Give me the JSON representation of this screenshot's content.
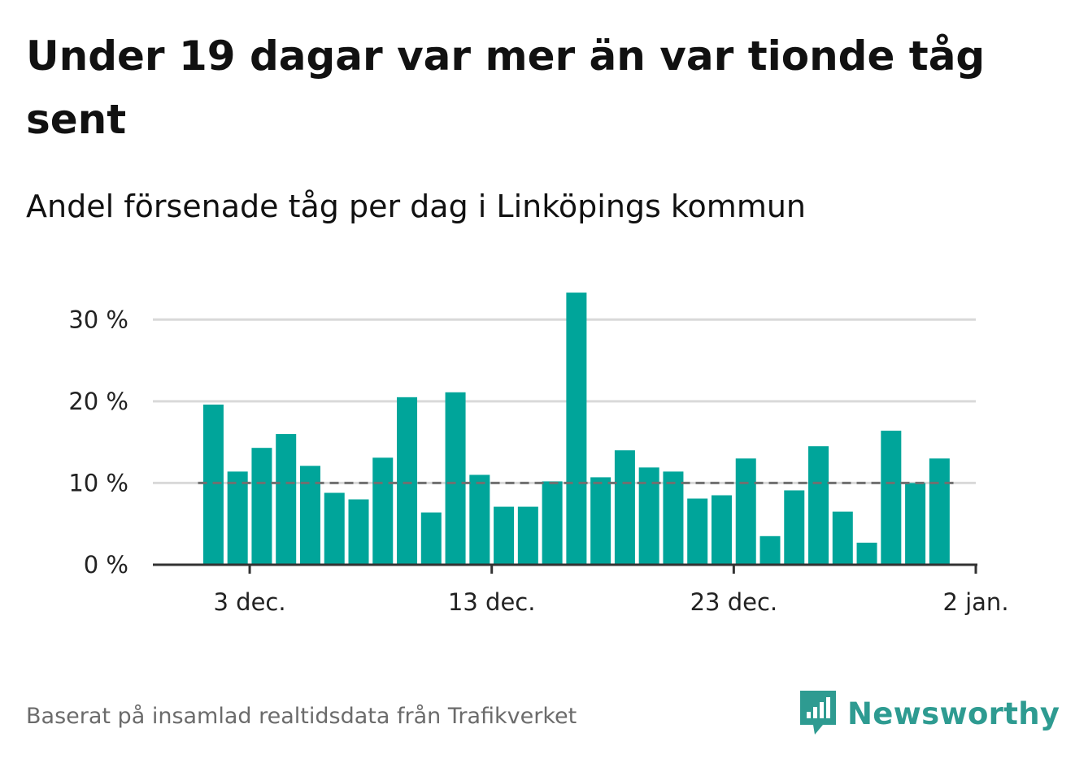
{
  "title": "Under 19 dagar var mer än var tionde tåg sent",
  "subtitle": "Andel försenade tåg per dag i Linköpings kommun",
  "footer": "Baserat på insamlad realtidsdata från Trafikverket",
  "brand": {
    "name": "Newsworthy",
    "icon": "newsworthy-logo-icon",
    "color": "#2e9b91"
  },
  "colors": {
    "bar": "#00a59a",
    "reference_line": "#707070",
    "grid": "#d9d9d9",
    "axis": "#333333"
  },
  "chart_data": {
    "type": "bar",
    "x_type": "date",
    "x": [
      "2023-12-01",
      "2023-12-02",
      "2023-12-03",
      "2023-12-04",
      "2023-12-05",
      "2023-12-06",
      "2023-12-07",
      "2023-12-08",
      "2023-12-09",
      "2023-12-10",
      "2023-12-11",
      "2023-12-12",
      "2023-12-13",
      "2023-12-14",
      "2023-12-15",
      "2023-12-16",
      "2023-12-17",
      "2023-12-18",
      "2023-12-19",
      "2023-12-20",
      "2023-12-21",
      "2023-12-22",
      "2023-12-23",
      "2023-12-24",
      "2023-12-25",
      "2023-12-26",
      "2023-12-27",
      "2023-12-28",
      "2023-12-29",
      "2023-12-30",
      "2023-12-31"
    ],
    "values": [
      19.6,
      11.4,
      14.3,
      16.0,
      12.1,
      8.8,
      8.0,
      13.1,
      20.5,
      6.4,
      21.1,
      11.0,
      7.1,
      7.1,
      10.2,
      33.3,
      10.7,
      14.0,
      11.9,
      11.4,
      8.1,
      8.5,
      13.0,
      3.5,
      9.1,
      14.5,
      6.5,
      2.7,
      16.4,
      10.0,
      13.0
    ],
    "reference_line": 10,
    "x_ticks": [
      "2023-12-03",
      "2023-12-13",
      "2023-12-23",
      "2024-01-02"
    ],
    "x_tick_labels": [
      "3 dec.",
      "13 dec.",
      "23 dec.",
      "2 jan."
    ],
    "y_ticks": [
      0,
      10,
      20,
      30
    ],
    "y_tick_labels": [
      "0 %",
      "10 %",
      "20 %",
      "30 %"
    ],
    "ylim": [
      0,
      35
    ],
    "xlim": [
      "2023-11-29",
      "2024-01-02"
    ],
    "grid": true,
    "legend": "none",
    "xlabel": "",
    "ylabel": ""
  }
}
